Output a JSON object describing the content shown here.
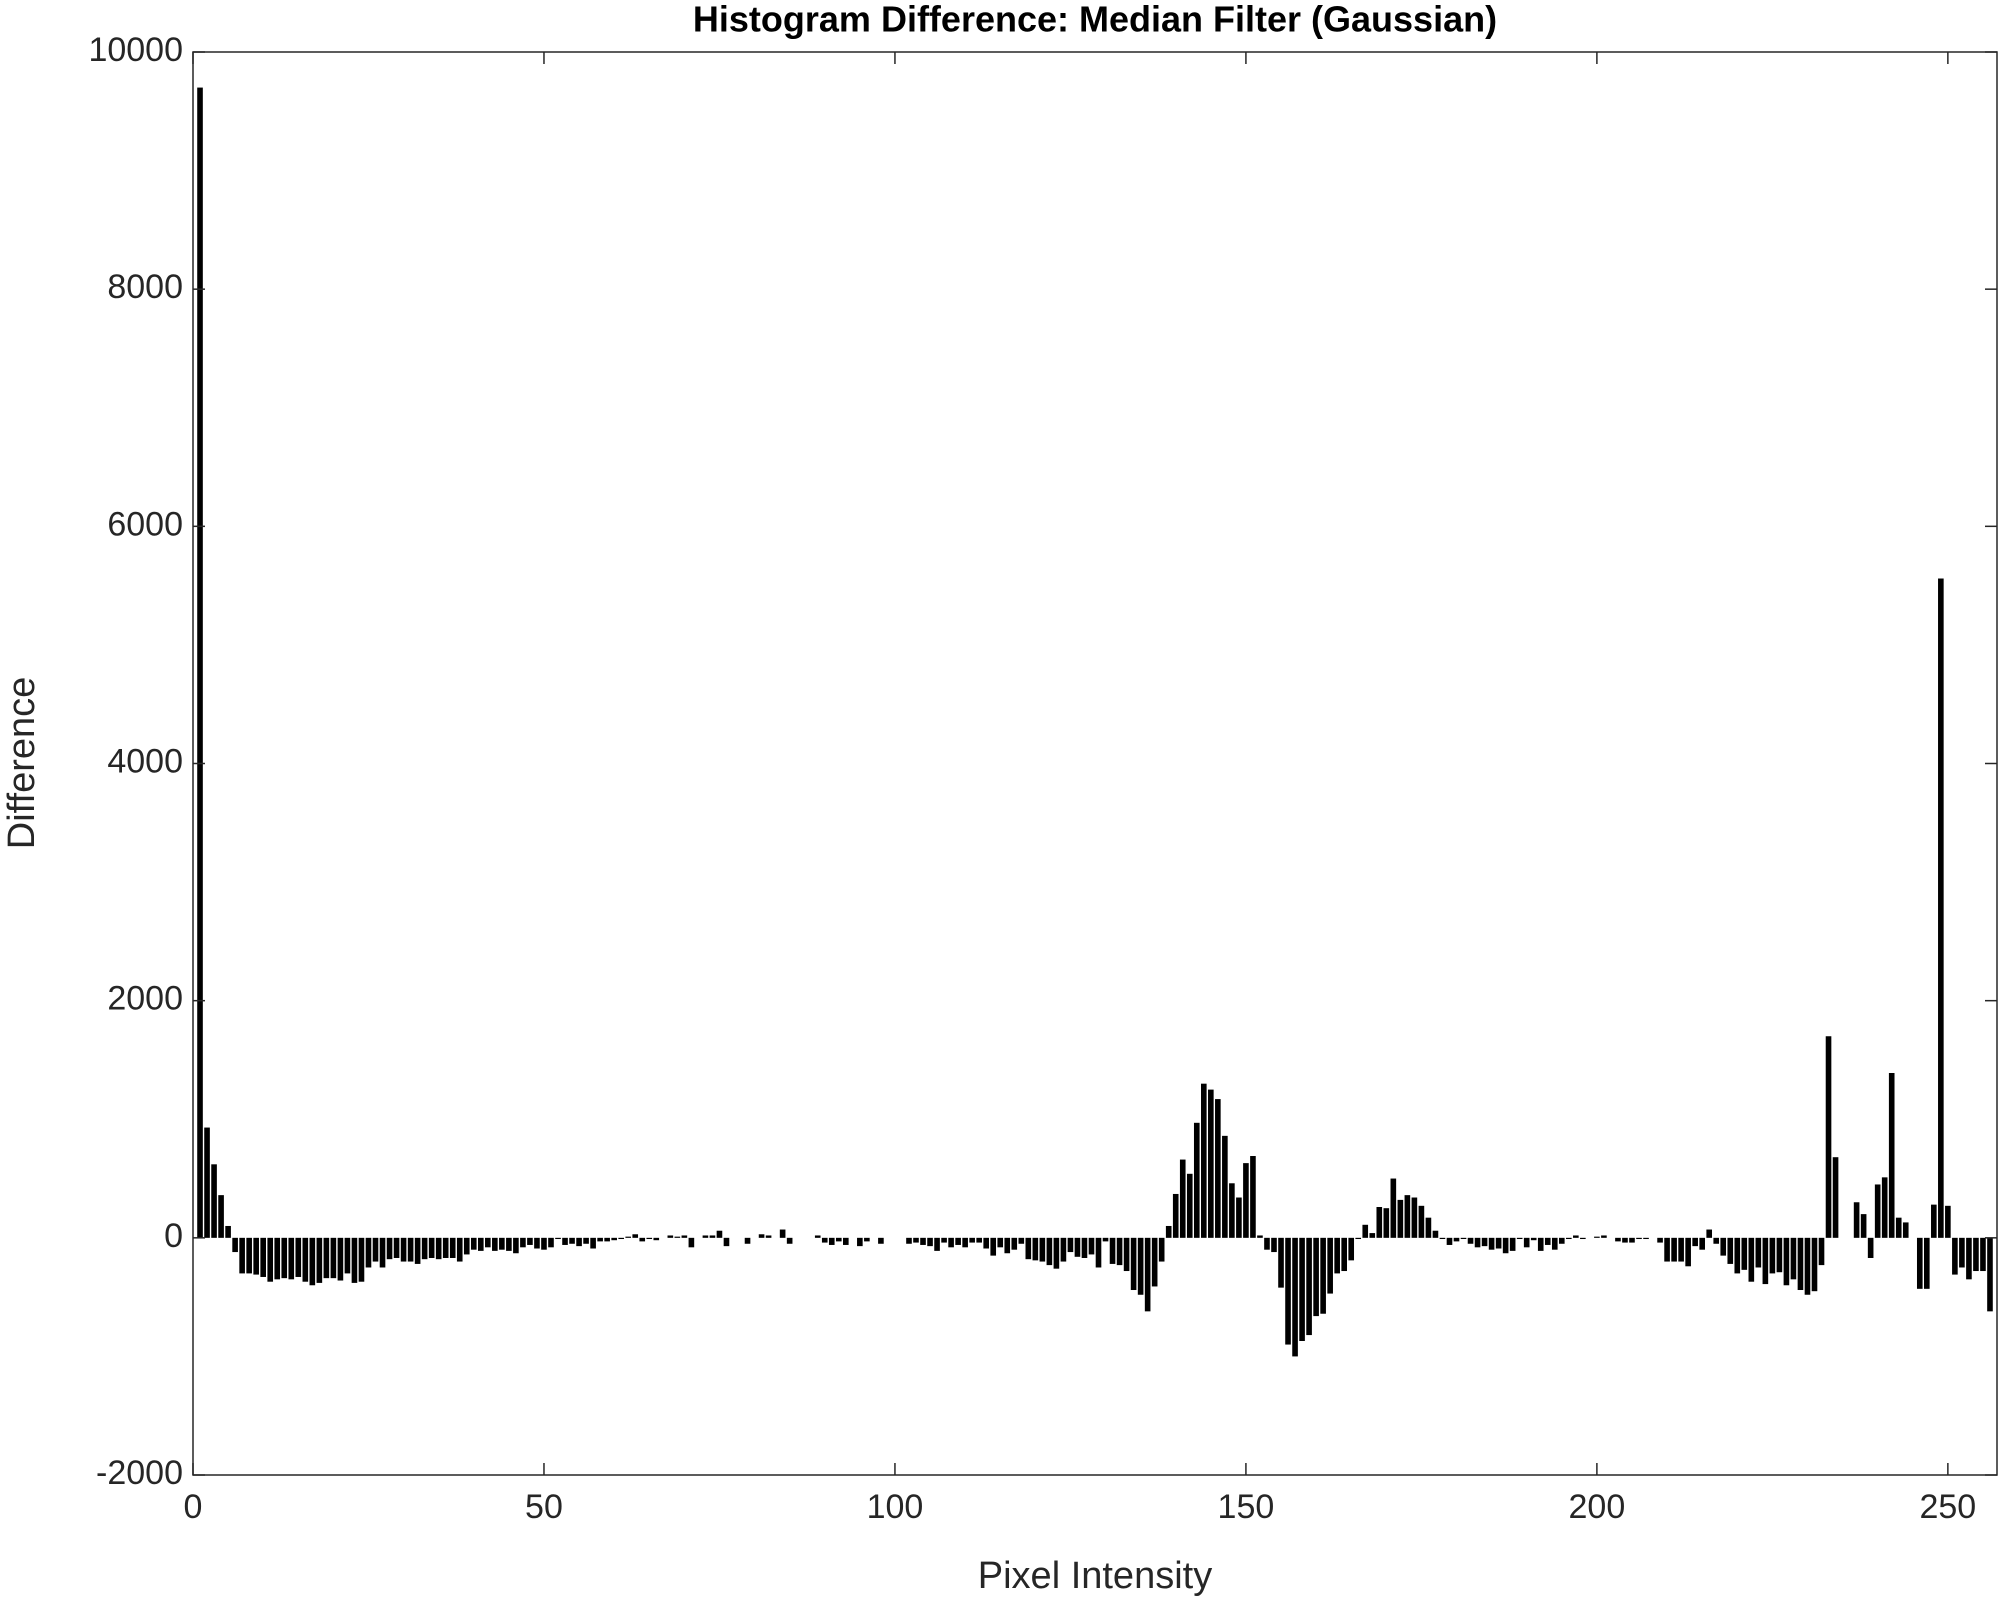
{
  "chart_data": {
    "type": "bar",
    "title": "Histogram Difference: Median Filter (Gaussian)",
    "x_label": "Pixel Intensity",
    "y_label": "Difference",
    "color": "#000000",
    "x": [
      1,
      2,
      3,
      4,
      5,
      6,
      7,
      8,
      9,
      10,
      11,
      12,
      13,
      14,
      15,
      16,
      17,
      18,
      19,
      20,
      21,
      22,
      23,
      24,
      25,
      26,
      27,
      28,
      29,
      30,
      31,
      32,
      33,
      34,
      35,
      36,
      37,
      38,
      39,
      40,
      41,
      42,
      43,
      44,
      45,
      46,
      47,
      48,
      49,
      50,
      51,
      52,
      53,
      54,
      55,
      56,
      57,
      58,
      59,
      60,
      61,
      62,
      63,
      64,
      65,
      66,
      67,
      68,
      69,
      70,
      71,
      72,
      73,
      74,
      75,
      76,
      77,
      78,
      79,
      80,
      81,
      82,
      83,
      84,
      85,
      86,
      87,
      88,
      89,
      90,
      91,
      92,
      93,
      94,
      95,
      96,
      97,
      98,
      99,
      100,
      101,
      102,
      103,
      104,
      105,
      106,
      107,
      108,
      109,
      110,
      111,
      112,
      113,
      114,
      115,
      116,
      117,
      118,
      119,
      120,
      121,
      122,
      123,
      124,
      125,
      126,
      127,
      128,
      129,
      130,
      131,
      132,
      133,
      134,
      135,
      136,
      137,
      138,
      139,
      140,
      141,
      142,
      143,
      144,
      145,
      146,
      147,
      148,
      149,
      150,
      151,
      152,
      153,
      154,
      155,
      156,
      157,
      158,
      159,
      160,
      161,
      162,
      163,
      164,
      165,
      166,
      167,
      168,
      169,
      170,
      171,
      172,
      173,
      174,
      175,
      176,
      177,
      178,
      179,
      180,
      181,
      182,
      183,
      184,
      185,
      186,
      187,
      188,
      189,
      190,
      191,
      192,
      193,
      194,
      195,
      196,
      197,
      198,
      199,
      200,
      201,
      202,
      203,
      204,
      205,
      206,
      207,
      208,
      209,
      210,
      211,
      212,
      213,
      214,
      215,
      216,
      217,
      218,
      219,
      220,
      221,
      222,
      223,
      224,
      225,
      226,
      227,
      228,
      229,
      230,
      231,
      232,
      233,
      234,
      235,
      236,
      237,
      238,
      239,
      240,
      241,
      242,
      243,
      244,
      245,
      246,
      247,
      248,
      249,
      250,
      251,
      252,
      253,
      254,
      255,
      256
    ],
    "values": [
      9700,
      930,
      620,
      360,
      100,
      -120,
      -300,
      -300,
      -310,
      -330,
      -370,
      -350,
      -340,
      -350,
      -330,
      -370,
      -400,
      -380,
      -340,
      -340,
      -360,
      -300,
      -380,
      -370,
      -250,
      -200,
      -250,
      -180,
      -170,
      -200,
      -200,
      -220,
      -180,
      -170,
      -180,
      -170,
      -170,
      -200,
      -140,
      -100,
      -110,
      -80,
      -110,
      -100,
      -110,
      -130,
      -80,
      -60,
      -90,
      -100,
      -80,
      -10,
      -60,
      -50,
      -70,
      -50,
      -90,
      -30,
      -30,
      -20,
      -10,
      10,
      30,
      -30,
      -10,
      -20,
      0,
      20,
      10,
      20,
      -80,
      0,
      20,
      20,
      60,
      -70,
      0,
      0,
      -50,
      0,
      30,
      20,
      0,
      70,
      -50,
      0,
      0,
      0,
      20,
      -40,
      -60,
      -30,
      -60,
      0,
      -70,
      -30,
      0,
      -50,
      0,
      0,
      0,
      -50,
      -40,
      -60,
      -70,
      -110,
      -40,
      -80,
      -60,
      -80,
      -40,
      -40,
      -90,
      -150,
      -80,
      -130,
      -100,
      -50,
      -180,
      -190,
      -200,
      -230,
      -260,
      -200,
      -120,
      -160,
      -170,
      -140,
      -250,
      -30,
      -220,
      -230,
      -280,
      -440,
      -480,
      -620,
      -410,
      -200,
      100,
      370,
      660,
      540,
      970,
      1300,
      1250,
      1170,
      860,
      460,
      340,
      630,
      690,
      20,
      -100,
      -120,
      -420,
      -900,
      -1000,
      -870,
      -820,
      -660,
      -640,
      -470,
      -300,
      -280,
      -190,
      -10,
      110,
      40,
      260,
      250,
      500,
      320,
      360,
      340,
      270,
      170,
      60,
      -10,
      -60,
      -30,
      -10,
      -50,
      -80,
      -70,
      -100,
      -90,
      -130,
      -110,
      -10,
      -80,
      -20,
      -110,
      -60,
      -100,
      -50,
      -10,
      20,
      -10,
      0,
      10,
      20,
      0,
      -30,
      -40,
      -40,
      -10,
      -10,
      0,
      -40,
      -200,
      -200,
      -200,
      -240,
      -70,
      -100,
      70,
      -50,
      -150,
      -220,
      -300,
      -270,
      -370,
      -250,
      -390,
      -300,
      -290,
      -400,
      -350,
      -440,
      -480,
      -450,
      -230,
      1700,
      680,
      0,
      0,
      300,
      200,
      -170,
      450,
      510,
      1390,
      170,
      130,
      0,
      -430,
      -430,
      280,
      5560,
      270,
      -310,
      -250,
      -350,
      -280,
      -280,
      -620
    ],
    "xlim": [
      0,
      257
    ],
    "xticks": [
      0,
      50,
      100,
      150,
      200,
      250
    ],
    "ylim": [
      -2000,
      10000
    ],
    "yticks": [
      -2000,
      0,
      2000,
      4000,
      6000,
      8000,
      10000
    ]
  }
}
